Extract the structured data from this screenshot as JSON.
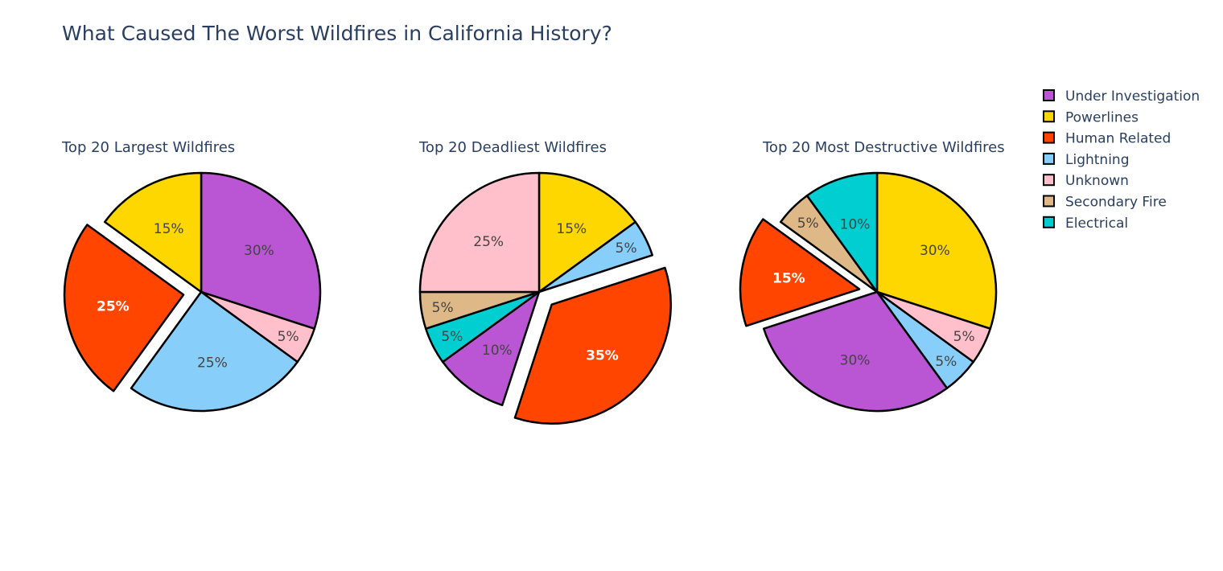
{
  "title": "What Caused The Worst Wildfires in California History?",
  "legend": {
    "placement": "top-right",
    "items": [
      {
        "label": "Under Investigation",
        "color": "#BA55D3"
      },
      {
        "label": "Powerlines",
        "color": "#FFD700"
      },
      {
        "label": "Human Related",
        "color": "#FF4500"
      },
      {
        "label": "Lightning",
        "color": "#87CEFA"
      },
      {
        "label": "Unknown",
        "color": "#FFC0CB"
      },
      {
        "label": "Secondary Fire",
        "color": "#DEB887"
      },
      {
        "label": "Electrical",
        "color": "#00CED1"
      }
    ]
  },
  "chart_data": [
    {
      "type": "pie",
      "title": "Top 20 Largest Wildfires",
      "direction": "clockwise",
      "slices": [
        {
          "label": "Under Investigation",
          "value": 30,
          "pct_label": "30%"
        },
        {
          "label": "Unknown",
          "value": 5,
          "pct_label": "5%"
        },
        {
          "label": "Lightning",
          "value": 25,
          "pct_label": "25%"
        },
        {
          "label": "Human Related",
          "value": 25,
          "pct_label": "25%",
          "pulled": true
        },
        {
          "label": "Powerlines",
          "value": 15,
          "pct_label": "15%"
        }
      ]
    },
    {
      "type": "pie",
      "title": "Top 20 Deadliest Wildfires",
      "direction": "clockwise",
      "slices": [
        {
          "label": "Powerlines",
          "value": 15,
          "pct_label": "15%"
        },
        {
          "label": "Lightning",
          "value": 5,
          "pct_label": "5%"
        },
        {
          "label": "Human Related",
          "value": 35,
          "pct_label": "35%",
          "pulled": true
        },
        {
          "label": "Under Investigation",
          "value": 10,
          "pct_label": "10%"
        },
        {
          "label": "Electrical",
          "value": 5,
          "pct_label": "5%"
        },
        {
          "label": "Secondary Fire",
          "value": 5,
          "pct_label": "5%"
        },
        {
          "label": "Unknown",
          "value": 25,
          "pct_label": "25%"
        }
      ]
    },
    {
      "type": "pie",
      "title": "Top 20 Most Destructive Wildfires",
      "direction": "clockwise",
      "slices": [
        {
          "label": "Powerlines",
          "value": 30,
          "pct_label": "30%"
        },
        {
          "label": "Unknown",
          "value": 5,
          "pct_label": "5%"
        },
        {
          "label": "Lightning",
          "value": 5,
          "pct_label": "5%"
        },
        {
          "label": "Under Investigation",
          "value": 30,
          "pct_label": "30%"
        },
        {
          "label": "Human Related",
          "value": 15,
          "pct_label": "15%",
          "pulled": true
        },
        {
          "label": "Secondary Fire",
          "value": 5,
          "pct_label": "5%"
        },
        {
          "label": "Electrical",
          "value": 10,
          "pct_label": "10%"
        }
      ]
    }
  ]
}
